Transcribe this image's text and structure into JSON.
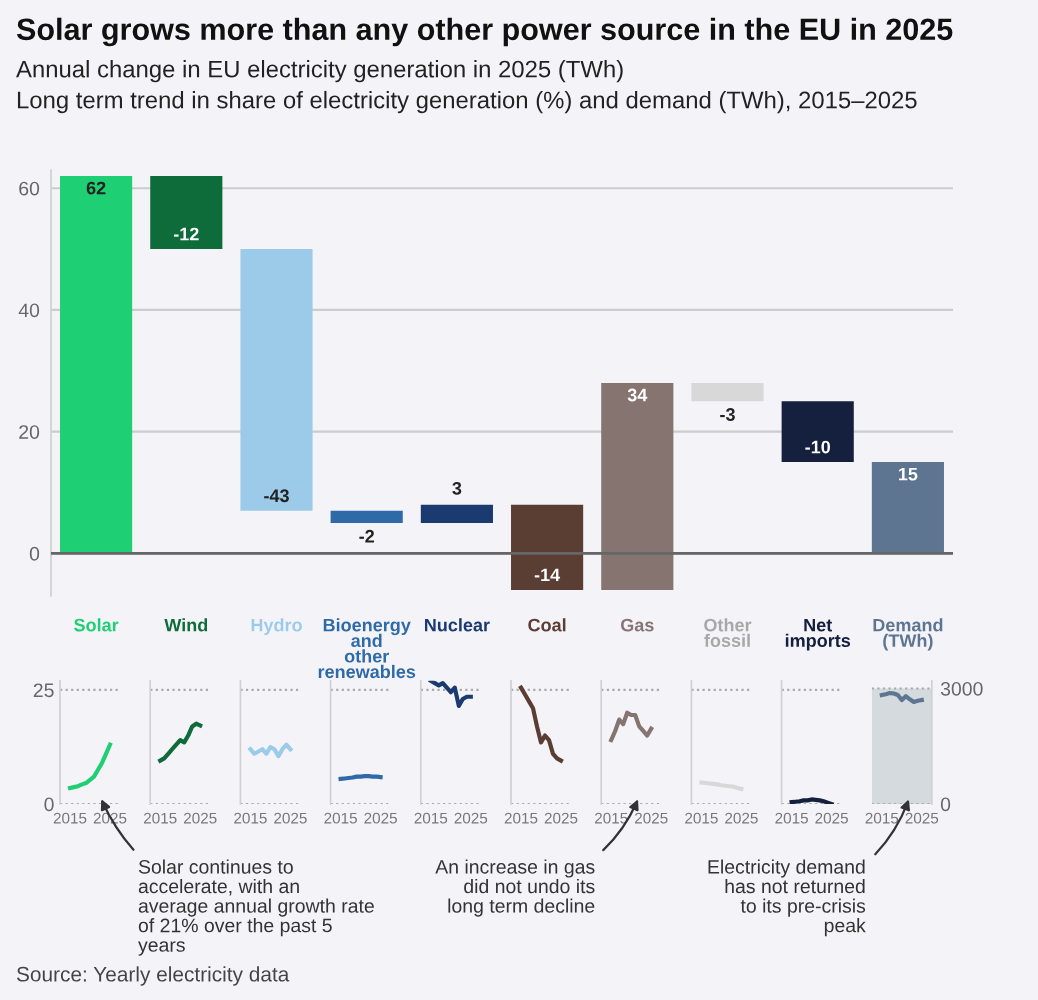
{
  "chart_data": [
    {
      "type": "bar",
      "title": "Solar grows more than any other power source in the EU in 2025",
      "subtitle": "Annual change in EU electricity generation in 2025 (TWh)\nLong term trend in share of electricity generation (%) and demand (TWh), 2015–2025",
      "categories": [
        "Solar",
        "Wind",
        "Hydro",
        "Bioenergy and other renewables",
        "Nuclear",
        "Coal",
        "Gas",
        "Other fossil",
        "Net imports",
        "Demand (TWh)"
      ],
      "values": [
        62,
        -12,
        -43,
        -2,
        3,
        -14,
        34,
        -3,
        -10,
        15
      ],
      "base": [
        0,
        62,
        50,
        7,
        5,
        8,
        -6,
        28,
        25,
        0
      ],
      "colors": [
        "#1ecf73",
        "#0e6b3a",
        "#9ccbea",
        "#2e6aa8",
        "#1b3a70",
        "#5a3d33",
        "#857470",
        "#d8d8d8",
        "#15203f",
        "#5d7590"
      ],
      "data_labels": true,
      "ylim": [
        -7,
        63
      ],
      "yticks": [
        0,
        20,
        40,
        60
      ],
      "grid": "y",
      "ref_lines": [
        {
          "axis": "y",
          "value": 0,
          "color": "#666666"
        }
      ],
      "annotations": [
        "Source: Yearly electricity data"
      ]
    },
    {
      "type": "line",
      "x": [
        2015,
        2016,
        2017,
        2018,
        2019,
        2020,
        2021,
        2022,
        2023,
        2024,
        2025
      ],
      "xlim": [
        2012.5,
        2027.5
      ],
      "xticks": [
        2015,
        2025
      ],
      "ylim": [
        0,
        27
      ],
      "yticks": [
        0,
        25
      ],
      "grid": "y",
      "series": [
        {
          "color": "#1ecf73",
          "values": [
            3.5,
            3.7,
            3.9,
            4.3,
            4.6,
            5.3,
            6,
            7.5,
            9,
            11,
            13
          ]
        }
      ],
      "annotations": [
        "Solar continues to accelerate, with an average annual growth rate of 21% over the past 5 years"
      ]
    },
    {
      "type": "line",
      "x": [
        2015,
        2016,
        2017,
        2018,
        2019,
        2020,
        2021,
        2022,
        2023,
        2024,
        2025
      ],
      "xlim": [
        2012.5,
        2027.5
      ],
      "xticks": [
        2015,
        2025
      ],
      "ylim": [
        0,
        27
      ],
      "yticks": [
        0,
        25
      ],
      "grid": "y",
      "tick_labels": "x",
      "series": [
        {
          "color": "#0e6b3a",
          "values": [
            9.5,
            10,
            11,
            12,
            13,
            14,
            13.5,
            15,
            17,
            17.6,
            17.2
          ]
        }
      ]
    },
    {
      "type": "line",
      "x": [
        2015,
        2016,
        2017,
        2018,
        2019,
        2020,
        2021,
        2022,
        2023,
        2024,
        2025
      ],
      "xlim": [
        2012.5,
        2027.5
      ],
      "xticks": [
        2015,
        2025
      ],
      "ylim": [
        0,
        27
      ],
      "yticks": [
        0,
        25
      ],
      "grid": "y",
      "tick_labels": "x",
      "series": [
        {
          "color": "#9ccbea",
          "values": [
            12,
            11,
            11.5,
            12,
            11,
            12.5,
            12,
            10.5,
            12,
            13,
            12
          ]
        }
      ]
    },
    {
      "type": "line",
      "x": [
        2015,
        2016,
        2017,
        2018,
        2019,
        2020,
        2021,
        2022,
        2023,
        2024,
        2025
      ],
      "xlim": [
        2012.5,
        2027.5
      ],
      "xticks": [
        2015,
        2025
      ],
      "ylim": [
        0,
        27
      ],
      "yticks": [
        0,
        25
      ],
      "grid": "y",
      "tick_labels": "x",
      "series": [
        {
          "color": "#2e6aa8",
          "values": [
            5.5,
            5.6,
            5.7,
            5.8,
            6,
            6,
            6.1,
            6.1,
            6,
            6,
            5.9
          ]
        }
      ]
    },
    {
      "type": "line",
      "x": [
        2015,
        2016,
        2017,
        2018,
        2019,
        2020,
        2021,
        2022,
        2023,
        2024,
        2025
      ],
      "xlim": [
        2012.5,
        2027.5
      ],
      "xticks": [
        2015,
        2025
      ],
      "ylim": [
        0,
        27
      ],
      "yticks": [
        0,
        25
      ],
      "grid": "y",
      "tick_labels": "x",
      "series": [
        {
          "color": "#1b3a70",
          "values": [
            27,
            26.5,
            26,
            26.5,
            25.5,
            24.5,
            25.5,
            21.5,
            23,
            23.5,
            23.5
          ]
        }
      ]
    },
    {
      "type": "line",
      "x": [
        2015,
        2016,
        2017,
        2018,
        2019,
        2020,
        2021,
        2022,
        2023,
        2024,
        2025
      ],
      "xlim": [
        2012.5,
        2027.5
      ],
      "xticks": [
        2015,
        2025
      ],
      "ylim": [
        0,
        27
      ],
      "yticks": [
        0,
        25
      ],
      "grid": "y",
      "tick_labels": "x",
      "series": [
        {
          "color": "#5a3d33",
          "values": [
            25.5,
            24,
            22.5,
            21,
            17,
            13.5,
            15,
            14,
            11,
            10,
            9.5
          ]
        }
      ]
    },
    {
      "type": "line",
      "x": [
        2015,
        2016,
        2017,
        2018,
        2019,
        2020,
        2021,
        2022,
        2023,
        2024,
        2025
      ],
      "xlim": [
        2012.5,
        2027.5
      ],
      "xticks": [
        2015,
        2025
      ],
      "ylim": [
        0,
        27
      ],
      "yticks": [
        0,
        25
      ],
      "grid": "y",
      "tick_labels": "x",
      "series": [
        {
          "color": "#857470",
          "values": [
            14,
            16,
            18.5,
            17.5,
            20,
            19.5,
            19.5,
            17,
            16,
            15,
            16.5
          ]
        }
      ],
      "annotations": [
        "An increase in gas did not undo its long term decline"
      ]
    },
    {
      "type": "line",
      "x": [
        2015,
        2016,
        2017,
        2018,
        2019,
        2020,
        2021,
        2022,
        2023,
        2024,
        2025
      ],
      "xlim": [
        2012.5,
        2027.5
      ],
      "xticks": [
        2015,
        2025
      ],
      "ylim": [
        0,
        27
      ],
      "yticks": [
        0,
        25
      ],
      "grid": "y",
      "tick_labels": "x",
      "series": [
        {
          "color": "#d8d8d8",
          "values": [
            4.7,
            4.6,
            4.5,
            4.4,
            4.3,
            4.1,
            4,
            3.9,
            3.8,
            3.5,
            3.3
          ]
        }
      ]
    },
    {
      "type": "line",
      "x": [
        2015,
        2016,
        2017,
        2018,
        2019,
        2020,
        2021,
        2022,
        2023,
        2024,
        2025
      ],
      "xlim": [
        2012.5,
        2027.5
      ],
      "xticks": [
        2015,
        2025
      ],
      "ylim": [
        0,
        27
      ],
      "yticks": [
        0,
        25
      ],
      "grid": "y",
      "tick_labels": "x",
      "series": [
        {
          "color": "#15203f",
          "values": [
            0.4,
            0.5,
            0.6,
            0.8,
            0.8,
            1,
            0.9,
            0.8,
            0.6,
            0.3,
            0
          ]
        }
      ]
    },
    {
      "type": "line",
      "x": [
        2015,
        2016,
        2017,
        2018,
        2019,
        2020,
        2021,
        2022,
        2023,
        2024,
        2025
      ],
      "xlim": [
        2012.5,
        2027.5
      ],
      "xticks": [
        2015,
        2025
      ],
      "y2lim": [
        0,
        3200
      ],
      "y2ticks": [
        0,
        3000
      ],
      "grid": "y",
      "bands": [
        {
          "axis": "y2",
          "from": 0,
          "to": 3000,
          "color": "#d5dade"
        }
      ],
      "series": [
        {
          "color": "#5d7590",
          "axis": "y2",
          "values": [
            2830,
            2850,
            2880,
            2870,
            2830,
            2700,
            2800,
            2720,
            2650,
            2680,
            2700
          ]
        }
      ],
      "annotations": [
        "Electricity demand has not returned to its pre-crisis peak"
      ]
    }
  ]
}
